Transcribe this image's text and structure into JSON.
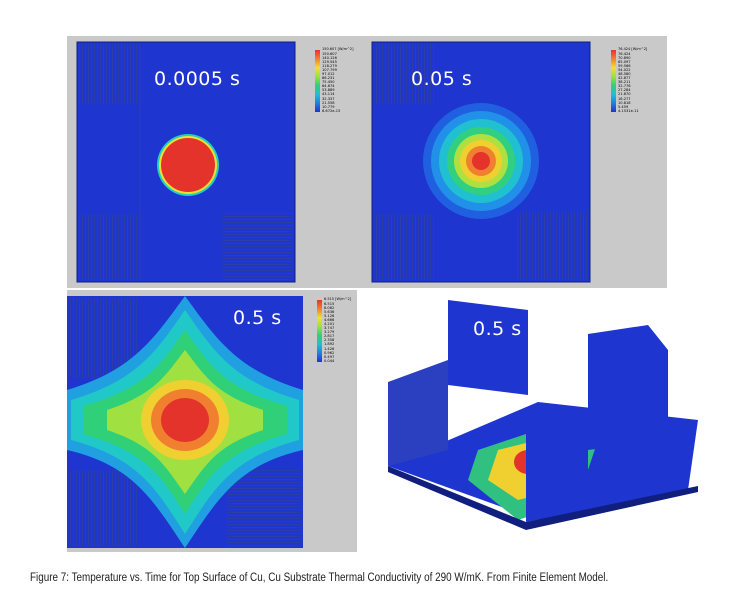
{
  "panels": [
    {
      "time_label": "0.0005 s",
      "legend_title": "150.607 [W/m^2]",
      "legend_values": [
        "150.607",
        "140.126",
        "129.545",
        "118.279",
        "107.799",
        "97.012",
        "86.231",
        "75.450",
        "64.674",
        "53.889",
        "43.114",
        "32.337",
        "21.558",
        "10.779",
        "6.672e-15"
      ]
    },
    {
      "time_label": "0.05 s",
      "legend_title": "76.424 [W/m^2]",
      "legend_values": [
        "76.424",
        "70.890",
        "65.097",
        "59.566",
        "54.022",
        "48.580",
        "42.877",
        "38.211",
        "32.776",
        "27.284",
        "21.870",
        "16.277",
        "10.818",
        "5.459",
        "4.1531e-11"
      ]
    },
    {
      "time_label": "0.5 s",
      "legend_title": "6.515 [W/m^2]",
      "legend_values": [
        "6.515",
        "6.082",
        "5.636",
        "5.126",
        "4.666",
        "4.201",
        "3.747",
        "3.279",
        "2.817",
        "2.358",
        "1.892",
        "1.426",
        "0.962",
        "0.497",
        "0.044"
      ]
    },
    {
      "time_label": "0.5 s"
    }
  ],
  "caption": "Figure 7: Temperature vs. Time for Top Surface of Cu, Cu Substrate Thermal Conductivity of 290 W/mK. From Finite Element Model.",
  "colors": {
    "background_blue": "#1e35d0",
    "panel_gray": "#c9c9c9",
    "hot_red": "#e4332a"
  }
}
